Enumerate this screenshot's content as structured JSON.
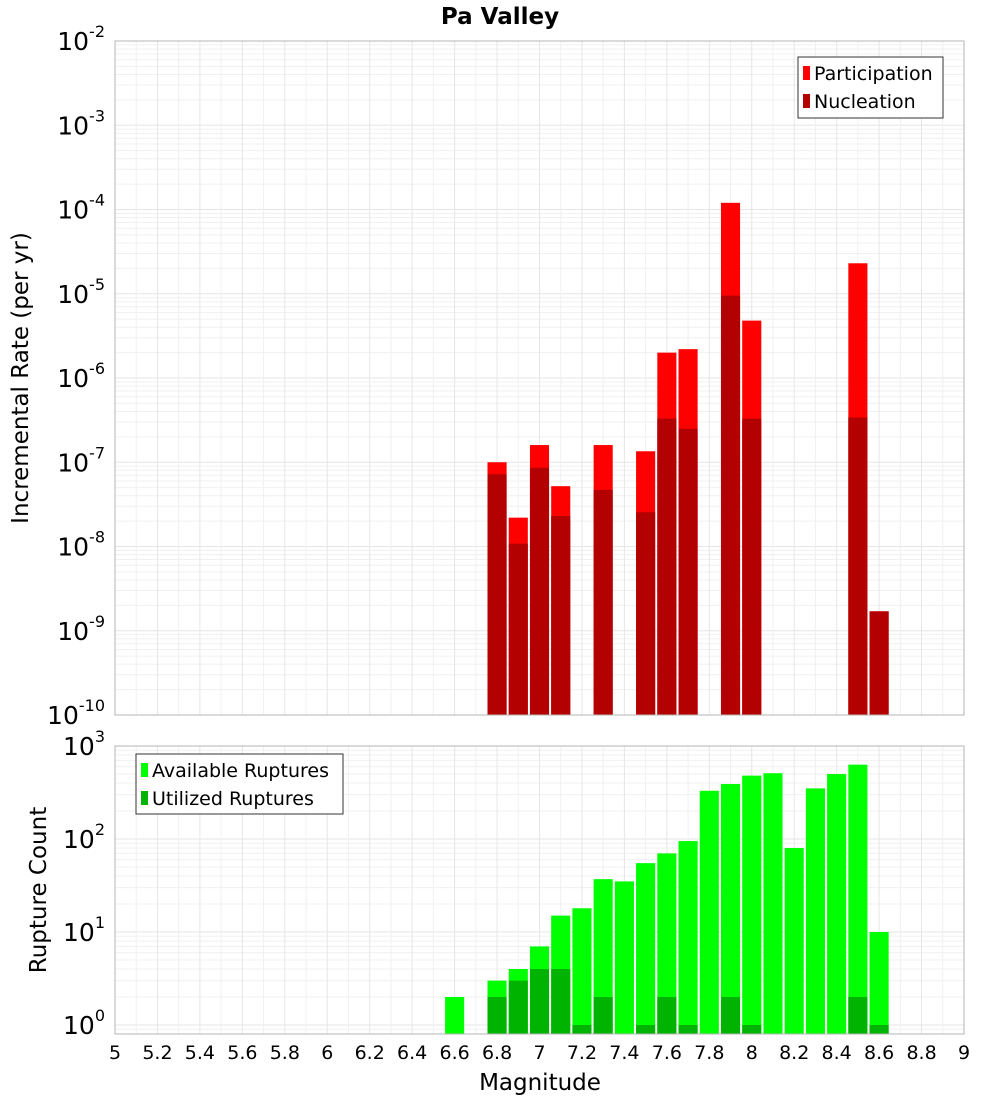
{
  "chart_data": [
    {
      "type": "bar",
      "title": "Pa Valley",
      "xlabel": "",
      "ylabel": "Incremental Rate (per yr)",
      "yscale": "log",
      "xlim": [
        5,
        9
      ],
      "ylim": [
        1e-10,
        0.01
      ],
      "ytick_exponents": [
        -10,
        -9,
        -8,
        -7,
        -6,
        -5,
        -4,
        -3,
        -2
      ],
      "ytick_base": "10",
      "grid": true,
      "legend_position": "top-right",
      "bar_width": 0.09,
      "x": [
        6.8,
        6.9,
        7.0,
        7.1,
        7.3,
        7.5,
        7.6,
        7.7,
        7.9,
        8.0,
        8.5,
        8.6
      ],
      "series": [
        {
          "name": "Participation",
          "color": "#ff0000",
          "values": [
            1e-07,
            2.2e-08,
            1.6e-07,
            5.2e-08,
            1.6e-07,
            1.35e-07,
            2e-06,
            2.2e-06,
            0.00012,
            4.8e-06,
            2.3e-05,
            1.7e-09
          ]
        },
        {
          "name": "Nucleation",
          "color": "#b30000",
          "values": [
            7.2e-08,
            1.08e-08,
            8.6e-08,
            2.3e-08,
            4.7e-08,
            2.55e-08,
            3.3e-07,
            2.5e-07,
            9.5e-06,
            3.3e-07,
            3.4e-07,
            1.7e-09
          ]
        }
      ]
    },
    {
      "type": "bar",
      "title": "",
      "xlabel": "Magnitude",
      "ylabel": "Rupture Count",
      "yscale": "log",
      "xlim": [
        5,
        9
      ],
      "ylim": [
        0.8,
        1000
      ],
      "ytick_exponents": [
        0,
        1,
        2,
        3
      ],
      "ytick_base": "10",
      "xticks": [
        "5",
        "5.2",
        "5.4",
        "5.6",
        "5.8",
        "6",
        "6.2",
        "6.4",
        "6.6",
        "6.8",
        "7",
        "7.2",
        "7.4",
        "7.6",
        "7.8",
        "8",
        "8.2",
        "8.4",
        "8.6",
        "8.8",
        "9"
      ],
      "grid": true,
      "legend_position": "top-left",
      "bar_width": 0.09,
      "x": [
        6.6,
        6.8,
        6.9,
        7.0,
        7.1,
        7.2,
        7.3,
        7.4,
        7.5,
        7.6,
        7.7,
        7.8,
        7.9,
        8.0,
        8.1,
        8.2,
        8.3,
        8.4,
        8.5,
        8.6
      ],
      "series": [
        {
          "name": "Available Ruptures",
          "color": "#00ff00",
          "values": [
            2,
            3,
            4,
            7,
            15,
            18,
            37,
            35,
            55,
            70,
            95,
            330,
            390,
            480,
            510,
            80,
            350,
            500,
            630,
            10
          ]
        },
        {
          "name": "Utilized Ruptures",
          "color": "#00b300",
          "values": [
            null,
            2,
            3,
            4,
            4,
            1,
            2,
            null,
            1,
            2,
            1,
            null,
            2,
            1,
            null,
            null,
            null,
            null,
            2,
            1
          ]
        }
      ]
    }
  ]
}
